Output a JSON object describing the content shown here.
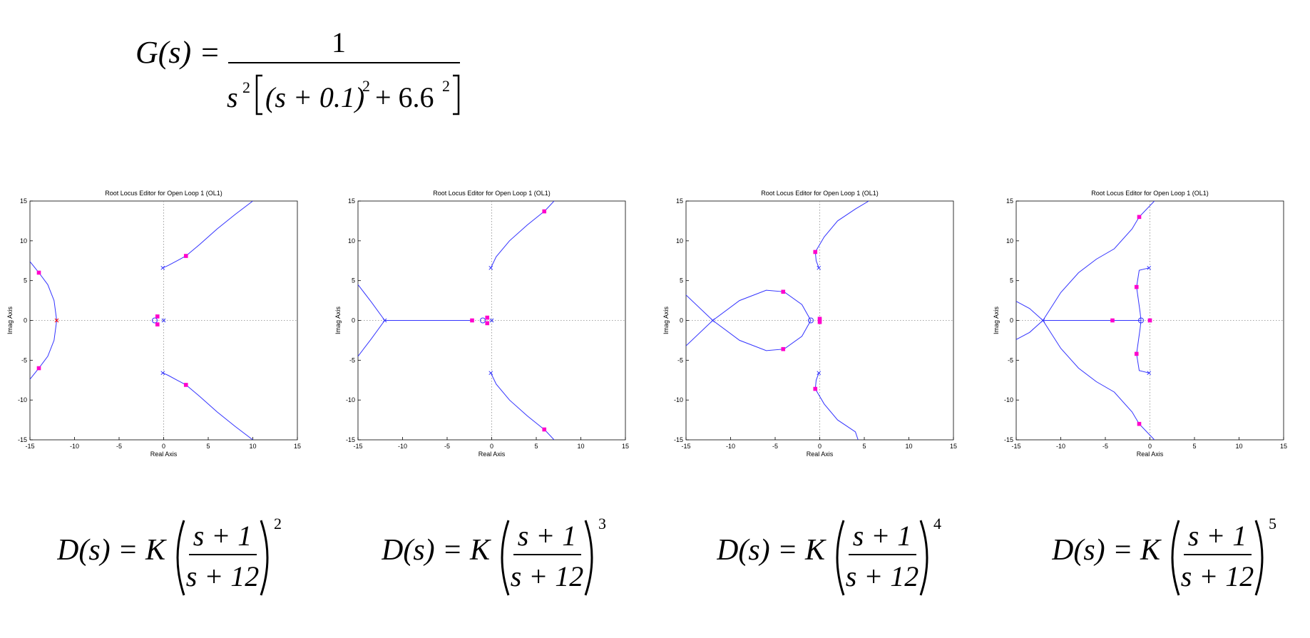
{
  "g_formula": {
    "lhs": "G(s) =",
    "numerator": "1",
    "denominator_s": "s",
    "denominator_s_exp": "2",
    "denominator_inner": "(s + 0.1)",
    "inner_exp": "2",
    "plus": "+ 6.6",
    "plus_exp": "2"
  },
  "colors": {
    "locus": "#3333ff",
    "marker": "#ff00cc",
    "pole_zero_blue": "#3333ff",
    "pole_red": "#ff0000",
    "axis": "#000000",
    "grid": "#888888"
  },
  "chart_data": [
    {
      "type": "line",
      "title": "Root Locus Editor for Open Loop 1 (OL1)",
      "xlabel": "Real Axis",
      "ylabel": "Imag Axis",
      "xlim": [
        -15,
        15
      ],
      "ylim": [
        -15,
        15
      ],
      "xticks": [
        -15,
        -10,
        -5,
        0,
        5,
        10,
        15
      ],
      "yticks": [
        -15,
        -10,
        -5,
        0,
        5,
        10,
        15
      ],
      "series": [
        {
          "points": [
            [
              -0.1,
              6.6
            ],
            [
              0.5,
              6.9
            ],
            [
              1.5,
              7.5
            ],
            [
              2.5,
              8.1
            ],
            [
              4,
              9.5
            ],
            [
              6,
              11.5
            ],
            [
              8,
              13.3
            ],
            [
              10,
              15
            ]
          ]
        },
        {
          "points": [
            [
              -0.1,
              -6.6
            ],
            [
              0.5,
              -6.9
            ],
            [
              1.5,
              -7.5
            ],
            [
              2.5,
              -8.1
            ],
            [
              4,
              -9.5
            ],
            [
              6,
              -11.5
            ],
            [
              8,
              -13.3
            ],
            [
              10,
              -15
            ]
          ]
        },
        {
          "points": [
            [
              -12,
              0
            ],
            [
              -12.3,
              2.5
            ],
            [
              -13,
              4.5
            ],
            [
              -14,
              6
            ],
            [
              -15,
              7.4
            ]
          ]
        },
        {
          "points": [
            [
              -12,
              0
            ],
            [
              -12.3,
              -2.5
            ],
            [
              -13,
              -4.5
            ],
            [
              -14,
              -6
            ],
            [
              -15,
              -7.4
            ]
          ]
        }
      ],
      "poles": [
        [
          -0.1,
          6.6
        ],
        [
          -0.1,
          -6.6
        ],
        [
          -12,
          0
        ],
        [
          0,
          0
        ]
      ],
      "zeros": [
        [
          -1,
          0
        ]
      ],
      "markers": [
        [
          2.5,
          8.1
        ],
        [
          2.5,
          -8.1
        ],
        [
          -14,
          6
        ],
        [
          -14,
          -6
        ],
        [
          -0.7,
          0.5
        ],
        [
          -0.7,
          -0.5
        ]
      ]
    },
    {
      "type": "line",
      "title": "Root Locus Editor for Open Loop 1 (OL1)",
      "xlabel": "Real Axis",
      "ylabel": "Imag Axis",
      "xlim": [
        -15,
        15
      ],
      "ylim": [
        -15,
        15
      ],
      "xticks": [
        -15,
        -10,
        -5,
        0,
        5,
        10,
        15
      ],
      "yticks": [
        -15,
        -10,
        -5,
        0,
        5,
        10,
        15
      ],
      "series": [
        {
          "points": [
            [
              -0.1,
              6.6
            ],
            [
              0.5,
              8
            ],
            [
              2,
              10
            ],
            [
              4,
              12
            ],
            [
              6,
              13.8
            ],
            [
              7,
              15
            ]
          ]
        },
        {
          "points": [
            [
              -0.1,
              -6.6
            ],
            [
              0.5,
              -8
            ],
            [
              2,
              -10
            ],
            [
              4,
              -12
            ],
            [
              6,
              -13.8
            ],
            [
              7,
              -15
            ]
          ]
        },
        {
          "points": [
            [
              -12,
              0
            ],
            [
              -13.5,
              2.3
            ],
            [
              -15,
              4.5
            ]
          ]
        },
        {
          "points": [
            [
              -12,
              0
            ],
            [
              -13.5,
              -2.3
            ],
            [
              -15,
              -4.5
            ]
          ]
        },
        {
          "points": [
            [
              -12,
              0
            ],
            [
              -2.2,
              0
            ]
          ]
        }
      ],
      "poles": [
        [
          -0.1,
          6.6
        ],
        [
          -0.1,
          -6.6
        ],
        [
          -12,
          0
        ],
        [
          0,
          0
        ]
      ],
      "zeros": [
        [
          -1,
          0
        ]
      ],
      "markers": [
        [
          5.9,
          13.7
        ],
        [
          5.9,
          -13.7
        ],
        [
          -2.2,
          0
        ],
        [
          -0.5,
          0.35
        ],
        [
          -0.5,
          -0.35
        ]
      ]
    },
    {
      "type": "line",
      "title": "Root Locus Editor for Open Loop 1 (OL1)",
      "xlabel": "Real Axis",
      "ylabel": "Imag Axis",
      "xlim": [
        -15,
        15
      ],
      "ylim": [
        -15,
        15
      ],
      "xticks": [
        -15,
        -10,
        -5,
        0,
        5,
        10,
        15
      ],
      "yticks": [
        -15,
        -10,
        -5,
        0,
        5,
        10,
        15
      ],
      "series": [
        {
          "points": [
            [
              -0.1,
              6.6
            ],
            [
              -0.4,
              7.5
            ],
            [
              -0.5,
              8.6
            ],
            [
              0.5,
              10.5
            ],
            [
              2,
              12.5
            ],
            [
              4,
              14
            ],
            [
              5.5,
              15
            ]
          ]
        },
        {
          "points": [
            [
              -0.1,
              -6.6
            ],
            [
              -0.4,
              -7.5
            ],
            [
              -0.5,
              -8.6
            ],
            [
              0.5,
              -10.5
            ],
            [
              2,
              -12.5
            ],
            [
              4,
              -14
            ],
            [
              4.3,
              -15
            ]
          ]
        },
        {
          "points": [
            [
              -1,
              0
            ],
            [
              -2,
              2
            ],
            [
              -4,
              3.6
            ],
            [
              -6,
              3.8
            ],
            [
              -9,
              2.5
            ],
            [
              -12,
              0
            ],
            [
              -15,
              -3.2
            ]
          ]
        },
        {
          "points": [
            [
              -1,
              0
            ],
            [
              -2,
              -2
            ],
            [
              -4,
              -3.6
            ],
            [
              -6,
              -3.8
            ],
            [
              -9,
              -2.5
            ],
            [
              -12,
              0
            ],
            [
              -15,
              3.2
            ]
          ]
        }
      ],
      "poles": [
        [
          -0.1,
          6.6
        ],
        [
          -0.1,
          -6.6
        ],
        [
          -12,
          0
        ],
        [
          0,
          0
        ]
      ],
      "zeros": [
        [
          -1,
          0
        ]
      ],
      "markers": [
        [
          -0.5,
          8.6
        ],
        [
          -0.5,
          -8.6
        ],
        [
          -4.1,
          3.6
        ],
        [
          -4.1,
          -3.6
        ],
        [
          0,
          0.2
        ],
        [
          0,
          -0.2
        ]
      ]
    },
    {
      "type": "line",
      "title": "Root Locus Editor for Open Loop 1 (OL1)",
      "xlabel": "Real Axis",
      "ylabel": "Imag Axis",
      "xlim": [
        -15,
        15
      ],
      "ylim": [
        -15,
        15
      ],
      "xticks": [
        -15,
        -10,
        -5,
        0,
        5,
        10,
        15
      ],
      "yticks": [
        -15,
        -10,
        -5,
        0,
        5,
        10,
        15
      ],
      "series": [
        {
          "points": [
            [
              -12,
              0
            ],
            [
              -10,
              3.5
            ],
            [
              -8,
              6
            ],
            [
              -6,
              7.7
            ],
            [
              -4,
              9
            ],
            [
              -2,
              11.5
            ],
            [
              -1.2,
              13
            ],
            [
              0.5,
              15
            ]
          ]
        },
        {
          "points": [
            [
              -12,
              0
            ],
            [
              -10,
              -3.5
            ],
            [
              -8,
              -6
            ],
            [
              -6,
              -7.7
            ],
            [
              -4,
              -9
            ],
            [
              -2,
              -11.5
            ],
            [
              -1.2,
              -13
            ],
            [
              0.5,
              -15
            ]
          ]
        },
        {
          "points": [
            [
              -12,
              0
            ],
            [
              -13.5,
              1.5
            ],
            [
              -15,
              2.4
            ]
          ]
        },
        {
          "points": [
            [
              -12,
              0
            ],
            [
              -13.5,
              -1.5
            ],
            [
              -15,
              -2.4
            ]
          ]
        },
        {
          "points": [
            [
              -12,
              0
            ],
            [
              -1,
              0
            ]
          ]
        },
        {
          "points": [
            [
              -0.1,
              6.6
            ],
            [
              -1.2,
              6.3
            ],
            [
              -1.5,
              4.2
            ],
            [
              -1.1,
              1
            ],
            [
              -1,
              0
            ]
          ]
        },
        {
          "points": [
            [
              -0.1,
              -6.6
            ],
            [
              -1.2,
              -6.3
            ],
            [
              -1.5,
              -4.2
            ],
            [
              -1.1,
              -1
            ],
            [
              -1,
              0
            ]
          ]
        }
      ],
      "poles": [
        [
          -0.1,
          6.6
        ],
        [
          -0.1,
          -6.6
        ],
        [
          -12,
          0
        ],
        [
          0,
          0
        ]
      ],
      "zeros": [
        [
          -1,
          0
        ]
      ],
      "markers": [
        [
          -1.2,
          13
        ],
        [
          -1.2,
          -13
        ],
        [
          -1.5,
          4.2
        ],
        [
          -1.5,
          -4.2
        ],
        [
          -4.2,
          0
        ],
        [
          0,
          0
        ]
      ]
    }
  ],
  "d_formulas": [
    {
      "lhs": "D(s) = K",
      "num": "s + 1",
      "den": "s + 12",
      "exp": "2"
    },
    {
      "lhs": "D(s) = K",
      "num": "s + 1",
      "den": "s + 12",
      "exp": "3"
    },
    {
      "lhs": "D(s) = K",
      "num": "s + 1",
      "den": "s + 12",
      "exp": "4"
    },
    {
      "lhs": "D(s) = K",
      "num": "s + 1",
      "den": "s + 12",
      "exp": "5"
    }
  ]
}
